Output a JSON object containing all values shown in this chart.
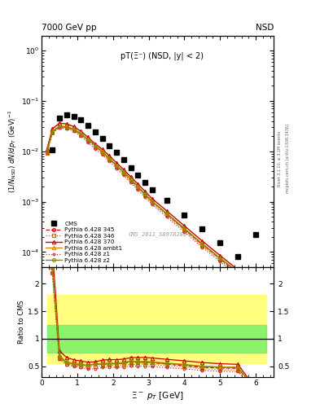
{
  "title_left": "7000 GeV pp",
  "title_right": "NSD",
  "annotation": "pT(Ξ⁻) (NSD, |y| < 2)",
  "watermark": "CMS_2011_S8978280",
  "right_label": "mcplots.cern.ch [arXiv:1306.3436]",
  "right_label2": "Rivet 3.1.10, ≥ 3.1M events",
  "xlabel": "Ξ⁻ p_T [GeV]",
  "ylabel": "(1/N_{NSD}) dN/dp_T (GeV)^{-1}",
  "ylabel_ratio": "Ratio to CMS",
  "cms_pt": [
    0.3,
    0.5,
    0.7,
    0.9,
    1.1,
    1.3,
    1.5,
    1.7,
    1.9,
    2.1,
    2.3,
    2.5,
    2.7,
    2.9,
    3.1,
    3.5,
    4.0,
    4.5,
    5.0,
    5.5,
    6.0
  ],
  "cms_y": [
    0.0105,
    0.046,
    0.053,
    0.05,
    0.042,
    0.033,
    0.024,
    0.018,
    0.013,
    0.0095,
    0.0068,
    0.0047,
    0.0034,
    0.0024,
    0.00175,
    0.00105,
    0.00055,
    0.00029,
    0.000155,
    8.2e-05,
    0.00022
  ],
  "py345_pt": [
    0.15,
    0.3,
    0.5,
    0.7,
    0.9,
    1.1,
    1.3,
    1.5,
    1.7,
    1.9,
    2.1,
    2.3,
    2.5,
    2.7,
    2.9,
    3.1,
    3.5,
    4.0,
    4.5,
    5.0,
    5.5,
    6.0
  ],
  "py345_y": [
    0.0095,
    0.024,
    0.031,
    0.03,
    0.027,
    0.022,
    0.017,
    0.013,
    0.0097,
    0.0071,
    0.0052,
    0.0038,
    0.0027,
    0.00195,
    0.00138,
    0.00099,
    0.00057,
    0.00028,
    0.00014,
    7.3e-05,
    3.8e-05,
    2e-05
  ],
  "py346_pt": [
    0.15,
    0.3,
    0.5,
    0.7,
    0.9,
    1.1,
    1.3,
    1.5,
    1.7,
    1.9,
    2.1,
    2.3,
    2.5,
    2.7,
    2.9,
    3.1,
    3.5,
    4.0,
    4.5,
    5.0,
    5.5,
    6.0
  ],
  "py346_y": [
    0.0092,
    0.023,
    0.03,
    0.029,
    0.026,
    0.021,
    0.016,
    0.012,
    0.0092,
    0.0068,
    0.0049,
    0.0036,
    0.0025,
    0.00183,
    0.0013,
    0.00093,
    0.00054,
    0.00027,
    0.000133,
    6.9e-05,
    3.5e-05,
    1.8e-05
  ],
  "py370_pt": [
    0.15,
    0.3,
    0.5,
    0.7,
    0.9,
    1.1,
    1.3,
    1.5,
    1.7,
    1.9,
    2.1,
    2.3,
    2.5,
    2.7,
    2.9,
    3.1,
    3.5,
    4.0,
    4.5,
    5.0,
    5.5,
    6.0
  ],
  "py370_y": [
    0.011,
    0.028,
    0.036,
    0.035,
    0.031,
    0.025,
    0.019,
    0.014,
    0.011,
    0.0081,
    0.0059,
    0.0043,
    0.0031,
    0.00224,
    0.00159,
    0.00114,
    0.00066,
    0.00033,
    0.000165,
    8.5e-05,
    4.4e-05,
    2.3e-05
  ],
  "pyambt1_pt": [
    0.15,
    0.3,
    0.5,
    0.7,
    0.9,
    1.1,
    1.3,
    1.5,
    1.7,
    1.9,
    2.1,
    2.3,
    2.5,
    2.7,
    2.9,
    3.1,
    3.5,
    4.0,
    4.5,
    5.0,
    5.5,
    6.0
  ],
  "pyambt1_y": [
    0.0098,
    0.025,
    0.032,
    0.031,
    0.028,
    0.023,
    0.017,
    0.013,
    0.01,
    0.0073,
    0.0053,
    0.0039,
    0.0028,
    0.002,
    0.00142,
    0.00102,
    0.00059,
    0.000295,
    0.000147,
    7.6e-05,
    4e-05,
    2.1e-05
  ],
  "pyz1_pt": [
    0.15,
    0.3,
    0.5,
    0.7,
    0.9,
    1.1,
    1.3,
    1.5,
    1.7,
    1.9,
    2.1,
    2.3,
    2.5,
    2.7,
    2.9,
    3.1,
    3.5,
    4.0,
    4.5,
    5.0,
    5.5,
    6.0
  ],
  "pyz1_y": [
    0.0093,
    0.023,
    0.029,
    0.028,
    0.025,
    0.02,
    0.015,
    0.011,
    0.0086,
    0.0063,
    0.0046,
    0.0033,
    0.0024,
    0.00171,
    0.00121,
    0.00087,
    0.0005,
    0.00025,
    0.000124,
    6.4e-05,
    3.3e-05,
    1.7e-05
  ],
  "pyz2_pt": [
    0.15,
    0.3,
    0.5,
    0.7,
    0.9,
    1.1,
    1.3,
    1.5,
    1.7,
    1.9,
    2.1,
    2.3,
    2.5,
    2.7,
    2.9,
    3.1,
    3.5,
    4.0,
    4.5,
    5.0,
    5.5,
    6.0
  ],
  "pyz2_y": [
    0.0097,
    0.024,
    0.031,
    0.03,
    0.027,
    0.022,
    0.017,
    0.013,
    0.0096,
    0.0071,
    0.0052,
    0.0038,
    0.0028,
    0.00197,
    0.0014,
    0.001,
    0.00058,
    0.00029,
    0.000144,
    7.5e-05,
    3.9e-05,
    2e-05
  ],
  "color_cms": "#000000",
  "color_345": "#cc0000",
  "color_346": "#cc6600",
  "color_370": "#cc0000",
  "color_ambt1": "#dd8800",
  "color_z1": "#cc3333",
  "color_z2": "#888800",
  "xlim": [
    0.0,
    6.5
  ],
  "ylim_main": [
    5e-05,
    2.0
  ],
  "ylim_ratio": [
    0.3,
    2.3
  ],
  "band_green_lo": 0.75,
  "band_green_hi": 1.25,
  "band_yellow_lo": 0.55,
  "band_yellow_hi": 1.8
}
